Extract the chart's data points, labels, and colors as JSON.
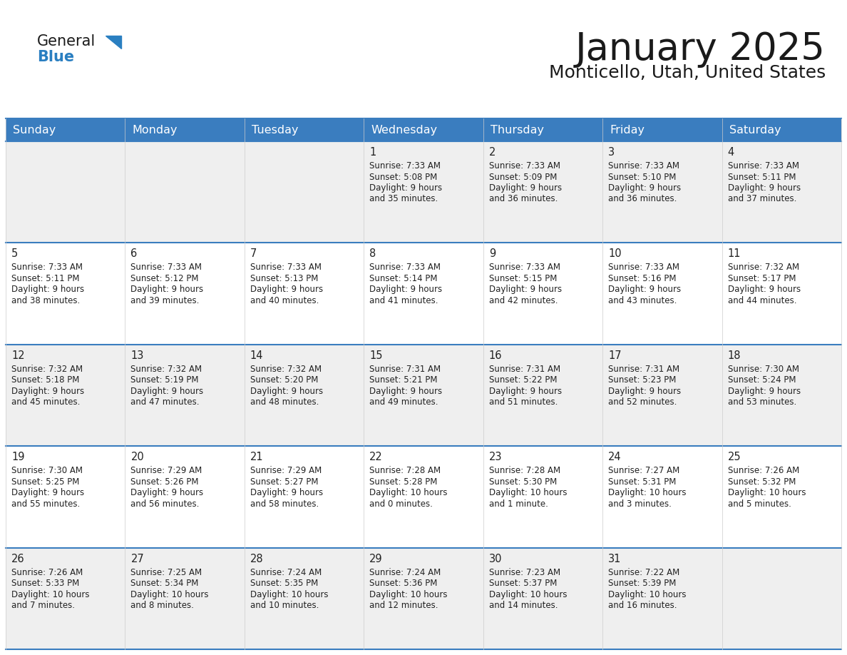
{
  "title": "January 2025",
  "subtitle": "Monticello, Utah, United States",
  "header_bg": "#3a7dbf",
  "header_text": "#ffffff",
  "row_bg_odd": "#efefef",
  "row_bg_even": "#ffffff",
  "day_headers": [
    "Sunday",
    "Monday",
    "Tuesday",
    "Wednesday",
    "Thursday",
    "Friday",
    "Saturday"
  ],
  "title_color": "#1a1a1a",
  "subtitle_color": "#1a1a1a",
  "cell_text_color": "#222222",
  "day_number_color": "#222222",
  "general_black": "#1a1a1a",
  "general_blue": "#2a7fc1",
  "row_divider_color": "#3a7dbf",
  "cell_divider_color": "#cccccc",
  "logo_triangle_color": "#2a7fc1",
  "days": [
    {
      "day": 1,
      "col": 3,
      "row": 0,
      "sunrise": "7:33 AM",
      "sunset": "5:08 PM",
      "daylight": "9 hours and 35 minutes."
    },
    {
      "day": 2,
      "col": 4,
      "row": 0,
      "sunrise": "7:33 AM",
      "sunset": "5:09 PM",
      "daylight": "9 hours and 36 minutes."
    },
    {
      "day": 3,
      "col": 5,
      "row": 0,
      "sunrise": "7:33 AM",
      "sunset": "5:10 PM",
      "daylight": "9 hours and 36 minutes."
    },
    {
      "day": 4,
      "col": 6,
      "row": 0,
      "sunrise": "7:33 AM",
      "sunset": "5:11 PM",
      "daylight": "9 hours and 37 minutes."
    },
    {
      "day": 5,
      "col": 0,
      "row": 1,
      "sunrise": "7:33 AM",
      "sunset": "5:11 PM",
      "daylight": "9 hours and 38 minutes."
    },
    {
      "day": 6,
      "col": 1,
      "row": 1,
      "sunrise": "7:33 AM",
      "sunset": "5:12 PM",
      "daylight": "9 hours and 39 minutes."
    },
    {
      "day": 7,
      "col": 2,
      "row": 1,
      "sunrise": "7:33 AM",
      "sunset": "5:13 PM",
      "daylight": "9 hours and 40 minutes."
    },
    {
      "day": 8,
      "col": 3,
      "row": 1,
      "sunrise": "7:33 AM",
      "sunset": "5:14 PM",
      "daylight": "9 hours and 41 minutes."
    },
    {
      "day": 9,
      "col": 4,
      "row": 1,
      "sunrise": "7:33 AM",
      "sunset": "5:15 PM",
      "daylight": "9 hours and 42 minutes."
    },
    {
      "day": 10,
      "col": 5,
      "row": 1,
      "sunrise": "7:33 AM",
      "sunset": "5:16 PM",
      "daylight": "9 hours and 43 minutes."
    },
    {
      "day": 11,
      "col": 6,
      "row": 1,
      "sunrise": "7:32 AM",
      "sunset": "5:17 PM",
      "daylight": "9 hours and 44 minutes."
    },
    {
      "day": 12,
      "col": 0,
      "row": 2,
      "sunrise": "7:32 AM",
      "sunset": "5:18 PM",
      "daylight": "9 hours and 45 minutes."
    },
    {
      "day": 13,
      "col": 1,
      "row": 2,
      "sunrise": "7:32 AM",
      "sunset": "5:19 PM",
      "daylight": "9 hours and 47 minutes."
    },
    {
      "day": 14,
      "col": 2,
      "row": 2,
      "sunrise": "7:32 AM",
      "sunset": "5:20 PM",
      "daylight": "9 hours and 48 minutes."
    },
    {
      "day": 15,
      "col": 3,
      "row": 2,
      "sunrise": "7:31 AM",
      "sunset": "5:21 PM",
      "daylight": "9 hours and 49 minutes."
    },
    {
      "day": 16,
      "col": 4,
      "row": 2,
      "sunrise": "7:31 AM",
      "sunset": "5:22 PM",
      "daylight": "9 hours and 51 minutes."
    },
    {
      "day": 17,
      "col": 5,
      "row": 2,
      "sunrise": "7:31 AM",
      "sunset": "5:23 PM",
      "daylight": "9 hours and 52 minutes."
    },
    {
      "day": 18,
      "col": 6,
      "row": 2,
      "sunrise": "7:30 AM",
      "sunset": "5:24 PM",
      "daylight": "9 hours and 53 minutes."
    },
    {
      "day": 19,
      "col": 0,
      "row": 3,
      "sunrise": "7:30 AM",
      "sunset": "5:25 PM",
      "daylight": "9 hours and 55 minutes."
    },
    {
      "day": 20,
      "col": 1,
      "row": 3,
      "sunrise": "7:29 AM",
      "sunset": "5:26 PM",
      "daylight": "9 hours and 56 minutes."
    },
    {
      "day": 21,
      "col": 2,
      "row": 3,
      "sunrise": "7:29 AM",
      "sunset": "5:27 PM",
      "daylight": "9 hours and 58 minutes."
    },
    {
      "day": 22,
      "col": 3,
      "row": 3,
      "sunrise": "7:28 AM",
      "sunset": "5:28 PM",
      "daylight": "10 hours and 0 minutes."
    },
    {
      "day": 23,
      "col": 4,
      "row": 3,
      "sunrise": "7:28 AM",
      "sunset": "5:30 PM",
      "daylight": "10 hours and 1 minute."
    },
    {
      "day": 24,
      "col": 5,
      "row": 3,
      "sunrise": "7:27 AM",
      "sunset": "5:31 PM",
      "daylight": "10 hours and 3 minutes."
    },
    {
      "day": 25,
      "col": 6,
      "row": 3,
      "sunrise": "7:26 AM",
      "sunset": "5:32 PM",
      "daylight": "10 hours and 5 minutes."
    },
    {
      "day": 26,
      "col": 0,
      "row": 4,
      "sunrise": "7:26 AM",
      "sunset": "5:33 PM",
      "daylight": "10 hours and 7 minutes."
    },
    {
      "day": 27,
      "col": 1,
      "row": 4,
      "sunrise": "7:25 AM",
      "sunset": "5:34 PM",
      "daylight": "10 hours and 8 minutes."
    },
    {
      "day": 28,
      "col": 2,
      "row": 4,
      "sunrise": "7:24 AM",
      "sunset": "5:35 PM",
      "daylight": "10 hours and 10 minutes."
    },
    {
      "day": 29,
      "col": 3,
      "row": 4,
      "sunrise": "7:24 AM",
      "sunset": "5:36 PM",
      "daylight": "10 hours and 12 minutes."
    },
    {
      "day": 30,
      "col": 4,
      "row": 4,
      "sunrise": "7:23 AM",
      "sunset": "5:37 PM",
      "daylight": "10 hours and 14 minutes."
    },
    {
      "day": 31,
      "col": 5,
      "row": 4,
      "sunrise": "7:22 AM",
      "sunset": "5:39 PM",
      "daylight": "10 hours and 16 minutes."
    }
  ]
}
